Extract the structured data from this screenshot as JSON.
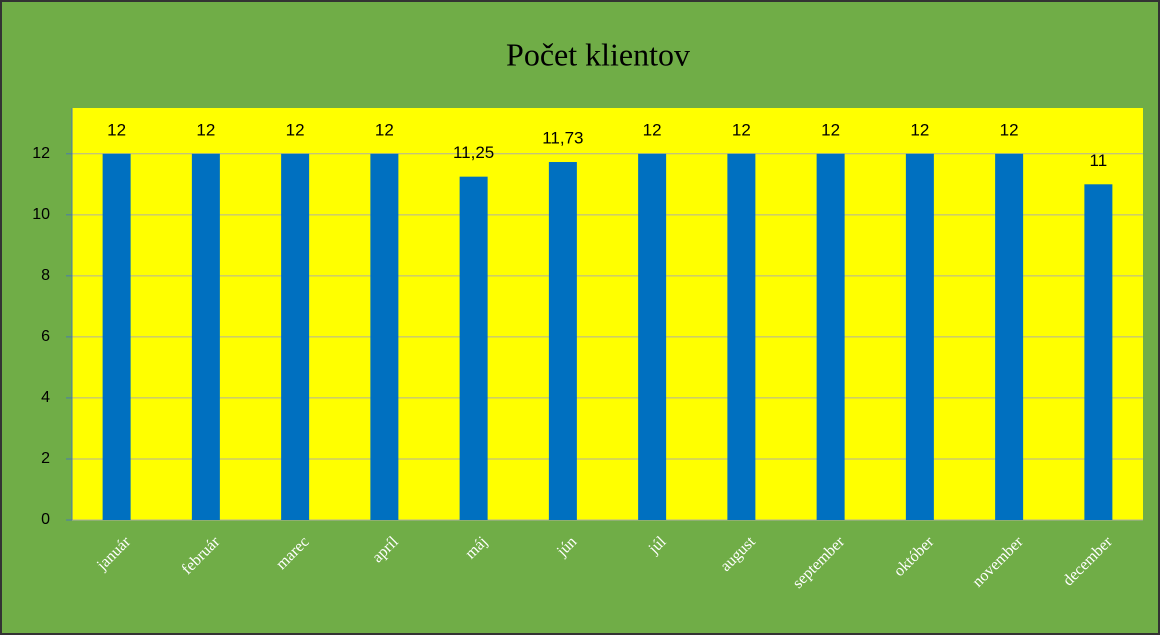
{
  "chart_data": {
    "type": "bar",
    "title": "Počet klientov",
    "categories": [
      "január",
      "február",
      "marec",
      "apríl",
      "máj",
      "jún",
      "júl",
      "august",
      "september",
      "október",
      "november",
      "december"
    ],
    "values": [
      12,
      12,
      12,
      12,
      11.25,
      11.73,
      12,
      12,
      12,
      12,
      12,
      11
    ],
    "value_labels": [
      "12",
      "12",
      "12",
      "12",
      "11,25",
      "11,73",
      "12",
      "12",
      "12",
      "12",
      "12",
      "11"
    ],
    "color": "#0070c0",
    "ylim": [
      0,
      13.5
    ],
    "yticks": [
      0,
      2,
      4,
      6,
      8,
      10,
      12
    ],
    "grid": true
  }
}
